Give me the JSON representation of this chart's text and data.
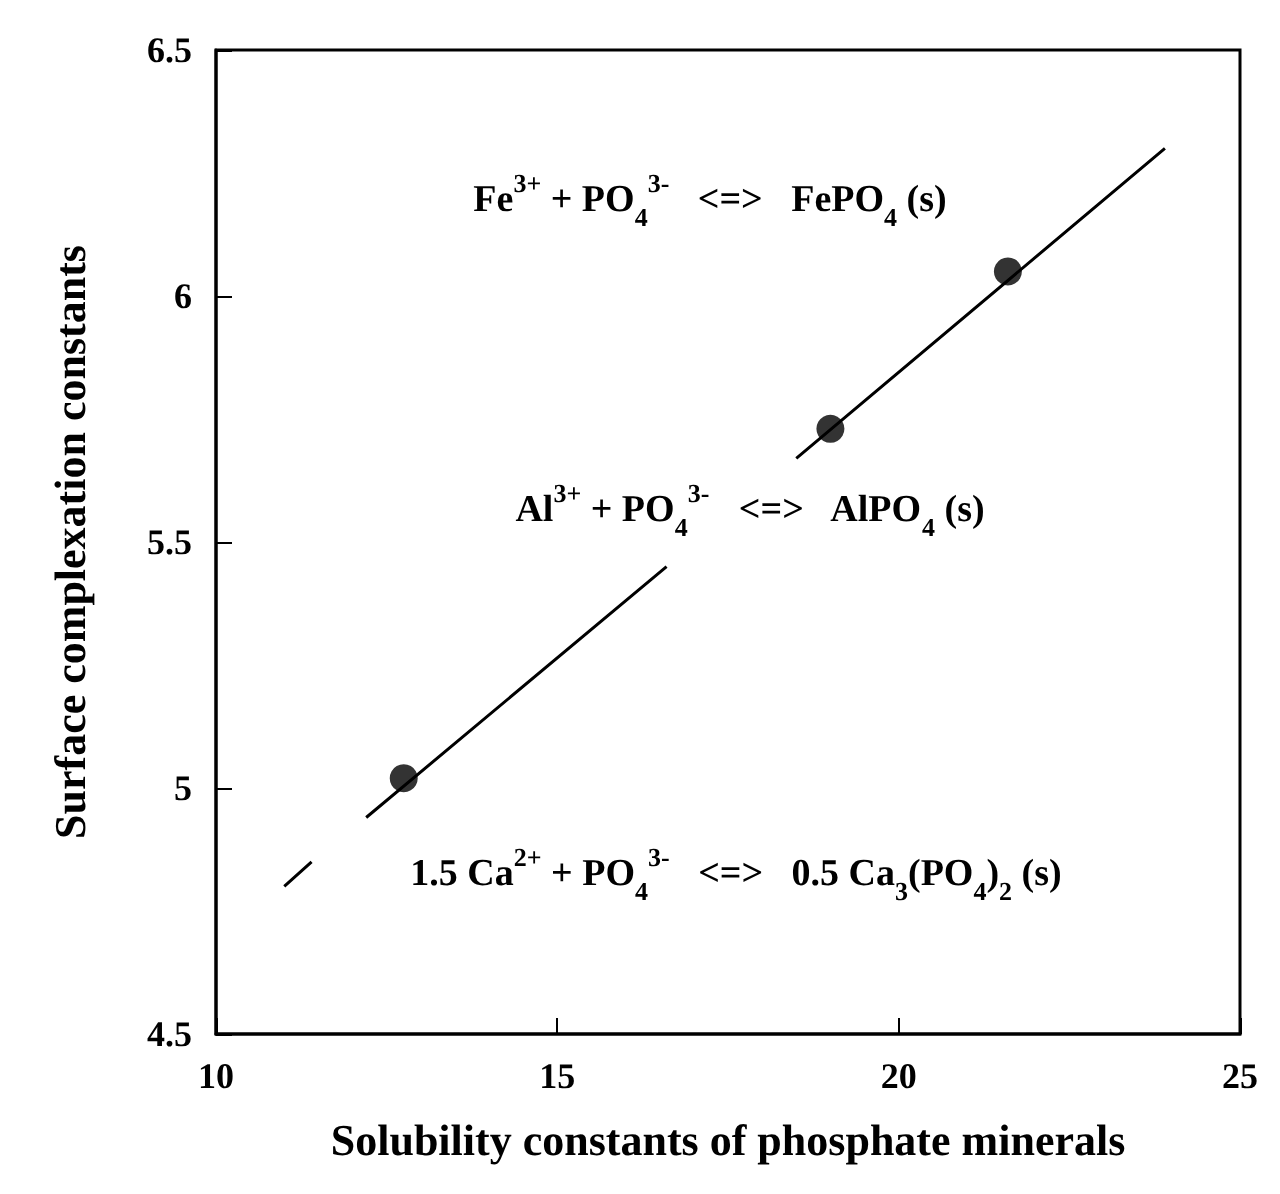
{
  "chart_data": {
    "type": "scatter",
    "xlabel": "Solubility constants of phosphate minerals",
    "ylabel": "Surface complexation constants",
    "xlim": [
      10,
      25
    ],
    "xticks": [
      10,
      15,
      20,
      25
    ],
    "ylim": [
      4.5,
      6.5
    ],
    "yticks": [
      4.5,
      5,
      5.5,
      6,
      6.5
    ],
    "grid": false,
    "series": [
      {
        "type": "scatter",
        "color": "#000000",
        "marker": "circle",
        "x": [
          12.75,
          19.0,
          21.6
        ],
        "values": [
          5.02,
          5.73,
          6.05
        ]
      },
      {
        "type": "line",
        "color": "#000000",
        "marker": "none",
        "line_style": "solid",
        "x": [
          11.0,
          11.4,
          11.8,
          12.2,
          16.6,
          17.5,
          18.5,
          23.9
        ],
        "values": [
          4.8,
          4.85,
          null,
          4.94,
          5.45,
          null,
          5.67,
          6.3
        ]
      }
    ],
    "annotations": [
      "Fe$^{3+}$ + PO$_{4}$$^{3-}$   <=>   FePO$_{4}$ (s)",
      "Al$^{3+}$ + PO$_{4}$$^{3-}$   <=>   AlPO$_{4}$ (s)",
      "1.5 Ca$^{2+}$ + PO$_{4}$$^{3-}$   <=>   0.5 Ca$_{3}$(PO$_{4}$)$_{2}$ (s)"
    ]
  }
}
